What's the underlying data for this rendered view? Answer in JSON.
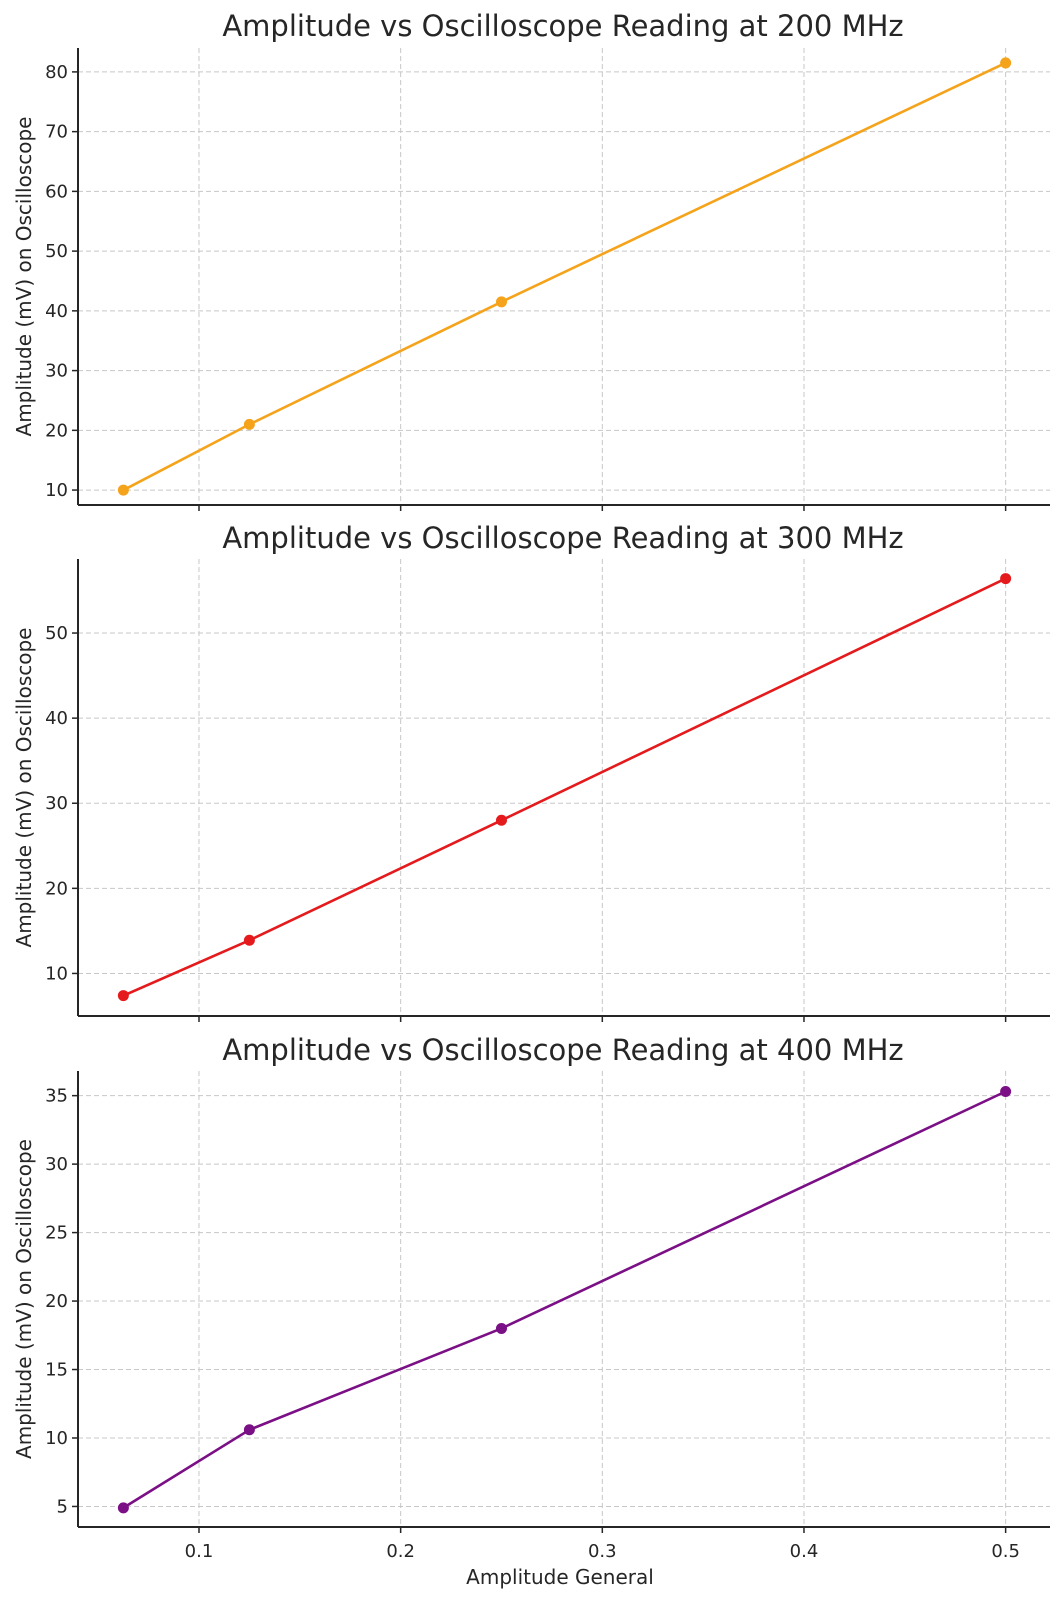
{
  "chart_data": [
    {
      "type": "line",
      "title": "Amplitude vs Oscilloscope Reading at 200 MHz",
      "xlabel": "",
      "ylabel": "Amplitude (mV) on Oscilloscope",
      "x": [
        0.0625,
        0.125,
        0.25,
        0.5
      ],
      "xticks": [
        0.1,
        0.2,
        0.3,
        0.4,
        0.5
      ],
      "show_xtick_labels": false,
      "xlim": [
        0.04,
        0.522
      ],
      "yticks": [
        10,
        20,
        30,
        40,
        50,
        60,
        70,
        80
      ],
      "ylim": [
        7.5,
        84
      ],
      "grid": true,
      "series": [
        {
          "values": [
            10.0,
            21.0,
            41.5,
            81.5
          ],
          "color": "#f5a31a",
          "marker": "circle"
        }
      ]
    },
    {
      "type": "line",
      "title": "Amplitude vs Oscilloscope Reading at 300 MHz",
      "xlabel": "",
      "ylabel": "Amplitude (mV) on Oscilloscope",
      "x": [
        0.0625,
        0.125,
        0.25,
        0.5
      ],
      "xticks": [
        0.1,
        0.2,
        0.3,
        0.4,
        0.5
      ],
      "show_xtick_labels": false,
      "xlim": [
        0.04,
        0.522
      ],
      "yticks": [
        10,
        20,
        30,
        40,
        50
      ],
      "ylim": [
        5,
        58.7
      ],
      "grid": true,
      "series": [
        {
          "values": [
            7.4,
            13.9,
            28.0,
            56.4
          ],
          "color": "#e41a1c",
          "marker": "circle"
        }
      ]
    },
    {
      "type": "line",
      "title": "Amplitude vs Oscilloscope Reading at 400 MHz",
      "xlabel": "Amplitude General",
      "ylabel": "Amplitude (mV) on Oscilloscope",
      "x": [
        0.0625,
        0.125,
        0.25,
        0.5
      ],
      "xticks": [
        0.1,
        0.2,
        0.3,
        0.4,
        0.5
      ],
      "show_xtick_labels": true,
      "xlim": [
        0.04,
        0.522
      ],
      "yticks": [
        5,
        10,
        15,
        20,
        25,
        30,
        35
      ],
      "ylim": [
        3.5,
        36.8
      ],
      "grid": true,
      "series": [
        {
          "values": [
            4.9,
            10.6,
            18.0,
            35.3
          ],
          "color": "#7b0f86",
          "marker": "circle"
        }
      ]
    }
  ]
}
